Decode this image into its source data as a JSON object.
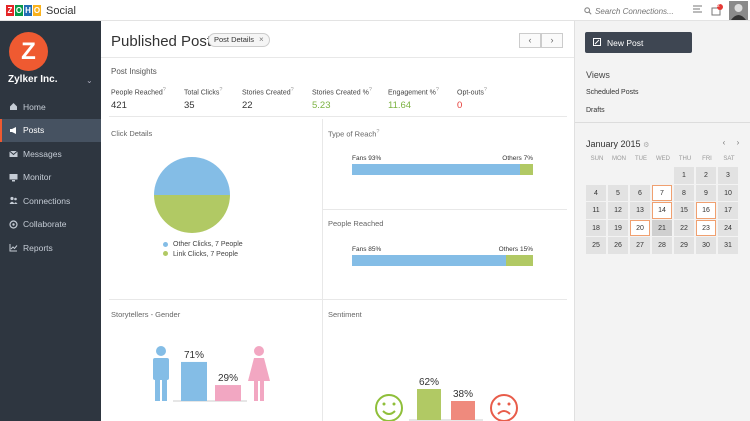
{
  "topbar": {
    "brand_letters": [
      "Z",
      "O",
      "H",
      "O"
    ],
    "brand_colors": [
      "#e42527",
      "#089949",
      "#226db4",
      "#f9b21d"
    ],
    "app_name": "Social",
    "search_placeholder": "Search Connections...",
    "notification_count": "2"
  },
  "sidebar": {
    "org_initial": "Z",
    "org_name": "Zylker Inc.",
    "items": [
      {
        "label": "Home",
        "icon": "home-icon",
        "active": false
      },
      {
        "label": "Posts",
        "icon": "megaphone-icon",
        "active": true
      },
      {
        "label": "Messages",
        "icon": "envelope-icon",
        "active": false
      },
      {
        "label": "Monitor",
        "icon": "monitor-icon",
        "active": false
      },
      {
        "label": "Connections",
        "icon": "people-icon",
        "active": false
      },
      {
        "label": "Collaborate",
        "icon": "collaborate-icon",
        "active": false
      },
      {
        "label": "Reports",
        "icon": "chart-icon",
        "active": false
      }
    ]
  },
  "main": {
    "title": "Published Posts",
    "chip": "Post Details",
    "insights": {
      "title": "Post Insights",
      "stats": [
        {
          "label": "People Reached",
          "value": "421",
          "color": "#333333"
        },
        {
          "label": "Total Clicks",
          "value": "35",
          "color": "#333333"
        },
        {
          "label": "Stories Created",
          "value": "22",
          "color": "#333333"
        },
        {
          "label": "Stories Created %",
          "value": "5.23",
          "color": "#7cb342"
        },
        {
          "label": "Engagement %",
          "value": "11.64",
          "color": "#7cb342"
        },
        {
          "label": "Opt-outs",
          "value": "0",
          "color": "#e53935"
        }
      ]
    },
    "click_details": {
      "title": "Click Details",
      "legend": [
        "Other Clicks, 7 People",
        "Link Clicks, 7 People"
      ]
    },
    "type_of_reach": {
      "title": "Type of Reach",
      "left": "Fans 93%",
      "right": "Others 7%"
    },
    "people_reached": {
      "title": "People Reached",
      "left": "Fans 85%",
      "right": "Others 15%"
    },
    "gender": {
      "title": "Storytellers - Gender",
      "male": "71%",
      "female": "29%"
    },
    "sentiment": {
      "title": "Sentiment",
      "positive": "62%",
      "negative": "38%"
    }
  },
  "right": {
    "new_post": "New Post",
    "views_title": "Views",
    "views": [
      "Scheduled Posts",
      "Drafts"
    ],
    "calendar": {
      "title": "January 2015",
      "days": [
        "SUN",
        "MON",
        "TUE",
        "WED",
        "THU",
        "FRI",
        "SAT"
      ],
      "cells": [
        "",
        "",
        "",
        "",
        "1",
        "2",
        "3",
        "4",
        "5",
        "6",
        "7",
        "8",
        "9",
        "10",
        "11",
        "12",
        "13",
        "14",
        "15",
        "16",
        "17",
        "18",
        "19",
        "20",
        "21",
        "22",
        "23",
        "24",
        "25",
        "26",
        "27",
        "28",
        "29",
        "30",
        "31"
      ],
      "highlighted": [
        "7",
        "14",
        "16",
        "20",
        "23"
      ],
      "today": "21"
    }
  },
  "colors": {
    "blue": "#84bde6",
    "green": "#b1c964",
    "pink": "#f2a7c2",
    "red": "#ef8a7d",
    "accent": "#ef5a31"
  },
  "chart_data": [
    {
      "type": "pie",
      "title": "Click Details",
      "categories": [
        "Other Clicks",
        "Link Clicks"
      ],
      "values": [
        7,
        7
      ]
    },
    {
      "type": "bar",
      "title": "Type of Reach",
      "categories": [
        "Fans",
        "Others"
      ],
      "values": [
        93,
        7
      ]
    },
    {
      "type": "bar",
      "title": "People Reached",
      "categories": [
        "Fans",
        "Others"
      ],
      "values": [
        85,
        15
      ]
    },
    {
      "type": "bar",
      "title": "Storytellers - Gender",
      "categories": [
        "Male",
        "Female"
      ],
      "values": [
        71,
        29
      ]
    },
    {
      "type": "bar",
      "title": "Sentiment",
      "categories": [
        "Positive",
        "Negative"
      ],
      "values": [
        62,
        38
      ]
    }
  ]
}
